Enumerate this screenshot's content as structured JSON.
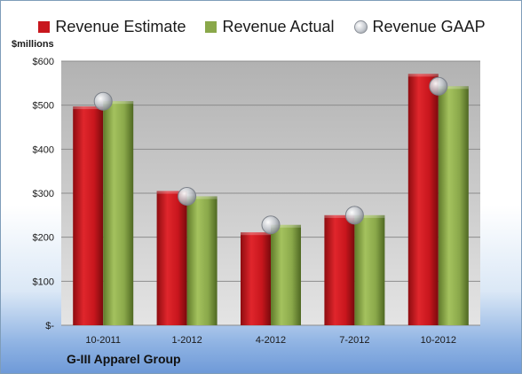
{
  "legend": {
    "estimate": "Revenue Estimate",
    "actual": "Revenue Actual",
    "gaap": "Revenue GAAP"
  },
  "unit_label": "$millions",
  "company": "G-III Apparel Group",
  "colors": {
    "estimate": "#c8161d",
    "actual": "#8aa84a",
    "gaap": "#b8bcc4",
    "plot_bg_top": "#b6b6b6",
    "plot_bg_bottom": "#e2e2e2"
  },
  "chart_data": {
    "type": "bar",
    "categories": [
      "10-2011",
      "1-2012",
      "4-2012",
      "7-2012",
      "10-2012"
    ],
    "series": [
      {
        "name": "Revenue Estimate",
        "values": [
          497,
          305,
          211,
          250,
          571
        ]
      },
      {
        "name": "Revenue Actual",
        "values": [
          509,
          293,
          228,
          250,
          543
        ]
      },
      {
        "name": "Revenue GAAP",
        "values": [
          509,
          293,
          228,
          250,
          543
        ]
      }
    ],
    "ylim": [
      0,
      600
    ],
    "yticks": [
      0,
      100,
      200,
      300,
      400,
      500,
      600
    ],
    "ytick_labels": [
      "$-",
      "$100",
      "$200",
      "$300",
      "$400",
      "$500",
      "$600"
    ],
    "grid": true,
    "legend_position": "top"
  }
}
